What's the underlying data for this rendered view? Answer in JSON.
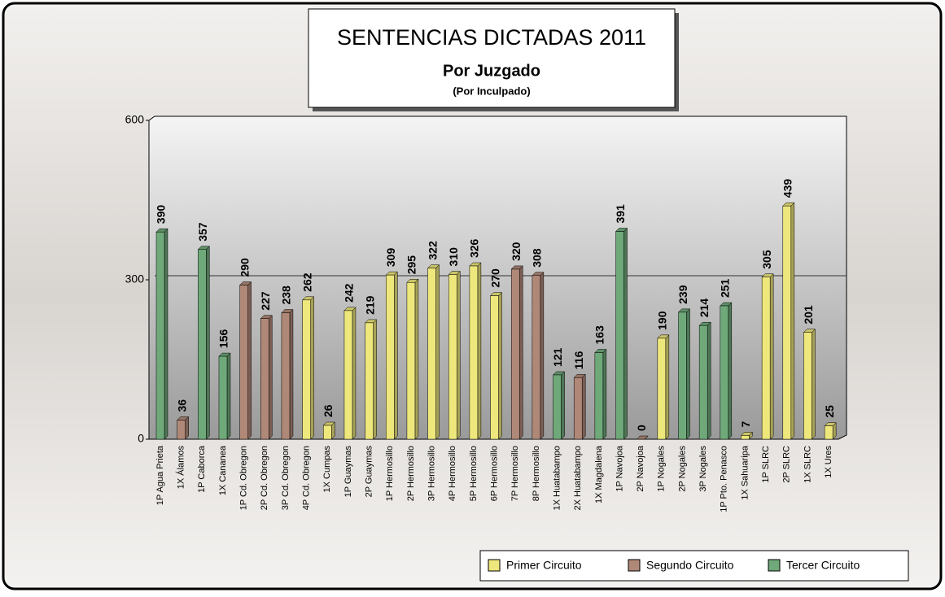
{
  "chart_data": {
    "type": "bar",
    "title": "SENTENCIAS DICTADAS 2011",
    "subtitles": [
      "Por Juzgado",
      "(Por Inculpado)"
    ],
    "categories": [
      "1P Agua Prieta",
      "1X Álamos",
      "1P Caborca",
      "1X Cananea",
      "1P Cd. Obregon",
      "2P Cd. Obregon",
      "3P Cd. Obregon",
      "4P Cd. Obregon",
      "1X Cumpas",
      "1P Guaymas",
      "2P Guaymas",
      "1P Hermosillo",
      "2P Hermosillo",
      "3P Hermosillo",
      "4P Hermosillo",
      "5P Hermosillo",
      "6P Hermosillo",
      "7P Hermosillo",
      "8P Hermosillo",
      "1X Huatabampo",
      "2X Huatabampo",
      "1X Magdalena",
      "1P Navojoa",
      "2P Navojoa",
      "1P Nogales",
      "2P Nogales",
      "3P Nogales",
      "1P Pto. Penasco",
      "1X Sahuaripa",
      "1P SLRC",
      "2P SLRC",
      "1X SLRC",
      "1X Ures"
    ],
    "series": [
      {
        "name": "Primer Circuito",
        "color": "#eee77c",
        "values": [
          null,
          null,
          null,
          null,
          null,
          null,
          null,
          262,
          26,
          242,
          219,
          309,
          295,
          322,
          310,
          326,
          270,
          null,
          null,
          null,
          null,
          null,
          null,
          null,
          190,
          null,
          null,
          null,
          7,
          305,
          439,
          201,
          25
        ]
      },
      {
        "name": "Segundo Circuito",
        "color": "#b08878",
        "values": [
          null,
          36,
          null,
          null,
          290,
          227,
          238,
          null,
          null,
          null,
          null,
          null,
          null,
          null,
          null,
          null,
          null,
          320,
          308,
          null,
          116,
          null,
          null,
          0,
          null,
          null,
          null,
          null,
          null,
          null,
          null,
          null,
          null
        ]
      },
      {
        "name": "Tercer Circuito",
        "color": "#6fa97a",
        "values": [
          390,
          null,
          357,
          156,
          null,
          null,
          null,
          null,
          null,
          null,
          null,
          null,
          null,
          null,
          null,
          null,
          null,
          null,
          null,
          121,
          null,
          163,
          391,
          null,
          null,
          239,
          214,
          251,
          null,
          null,
          null,
          null,
          null
        ]
      }
    ],
    "ylim": [
      0,
      600
    ],
    "yticks": [
      0,
      300,
      600
    ],
    "grid": true,
    "legend": "bottom-right"
  }
}
